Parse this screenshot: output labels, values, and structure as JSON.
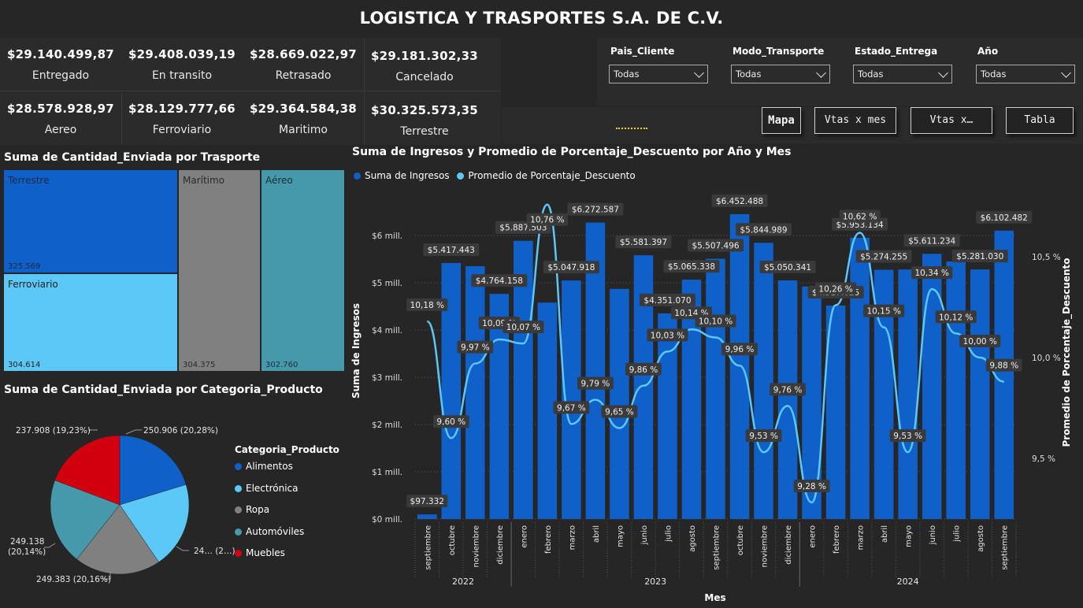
{
  "header": {
    "title": "LOGISTICA Y TRASPORTES S.A. DE C.V."
  },
  "kpis": [
    {
      "value": "$29.140.499,87",
      "label": "Entregado"
    },
    {
      "value": "$29.408.039,19",
      "label": "En transito"
    },
    {
      "value": "$28.669.022,97",
      "label": "Retrasado"
    },
    {
      "value": "$29.181.302,33",
      "label": "Cancelado"
    },
    {
      "value": "$28.578.928,97",
      "label": "Aereo"
    },
    {
      "value": "$28.129.777,66",
      "label": "Ferroviario"
    },
    {
      "value": "$29.364.584,38",
      "label": "Maritimo"
    },
    {
      "value": "$30.325.573,35",
      "label": "Terrestre"
    }
  ],
  "filters": [
    {
      "label": "Pais_Cliente",
      "value": "Todas"
    },
    {
      "label": "Modo_Transporte",
      "value": "Todas"
    },
    {
      "label": "Estado_Entrega",
      "value": "Todas"
    },
    {
      "label": "Año",
      "value": "Todas"
    }
  ],
  "nav": {
    "buttons": [
      "Mapa",
      "Vtas x mes",
      "Vtas x…",
      "Tabla"
    ]
  },
  "treemap": {
    "title": "Suma de Cantidad_Enviada por Trasporte",
    "items": [
      {
        "label": "Terrestre",
        "value": "325.569",
        "color": "#1060c9"
      },
      {
        "label": "Ferroviario",
        "value": "304.614",
        "color": "#5bc8f8"
      },
      {
        "label": "Marítimo",
        "value": "304.375",
        "color": "#808080"
      },
      {
        "label": "Aéreo",
        "value": "302.760",
        "color": "#4599ab"
      }
    ]
  },
  "pie": {
    "title": "Suma de Cantidad_Enviada por Categoria_Producto",
    "legend_title": "Categoria_Producto",
    "slice_labels": [
      "250.906 (20,28%)",
      "24… (2…)",
      "249.383 (20,16%)",
      "249.138",
      "(20,14%)",
      "237.908 (19,23%)"
    ]
  },
  "chart_data": [
    {
      "type": "treemap",
      "title": "Suma de Cantidad_Enviada por Trasporte",
      "categories": [
        "Terrestre",
        "Ferroviario",
        "Marítimo",
        "Aéreo"
      ],
      "values": [
        325569,
        304614,
        304375,
        302760
      ]
    },
    {
      "type": "pie",
      "title": "Suma de Cantidad_Enviada por Categoria_Producto",
      "legend_title": "Categoria_Producto",
      "categories": [
        "Alimentos",
        "Electrónica",
        "Ropa",
        "Automóviles",
        "Muebles"
      ],
      "values": [
        250906,
        249800,
        249383,
        249138,
        237908
      ],
      "colors": [
        "#1060c9",
        "#5bc8f8",
        "#808080",
        "#4599ab",
        "#d2000f"
      ]
    },
    {
      "type": "bar+line",
      "title": "Suma de Ingresos y Promedio de Porcentaje_Descuento por Año y Mes",
      "xlabel": "Mes",
      "ylabel": "Suma de Ingresos",
      "y2label": "Promedio de Porcentaje_Descuento",
      "y_ticks": [
        "$0 mill.",
        "$1 mill.",
        "$2 mill.",
        "$3 mill.",
        "$4 mill.",
        "$5 mill.",
        "$6 mill."
      ],
      "y2_ticks": [
        "9,5 %",
        "10,0 %",
        "10,5 %"
      ],
      "ylim": [
        0,
        6000000
      ],
      "y2lim": [
        9.0,
        11.0
      ],
      "grid": true,
      "legend_position": "top-left",
      "years": [
        {
          "label": "2022",
          "count": 4
        },
        {
          "label": "2023",
          "count": 12
        },
        {
          "label": "2024",
          "count": 9
        }
      ],
      "categories": [
        "septiembre",
        "octubre",
        "noviembre",
        "diciembre",
        "enero",
        "febrero",
        "marzo",
        "abril",
        "mayo",
        "junio",
        "julio",
        "agosto",
        "septiembre",
        "octubre",
        "noviembre",
        "diciembre",
        "enero",
        "febrero",
        "marzo",
        "abril",
        "mayo",
        "junio",
        "julio",
        "agosto",
        "septiembre"
      ],
      "series": [
        {
          "name": "Suma de Ingresos",
          "kind": "bar",
          "color": "#1060c9",
          "values": [
            97332,
            5417443,
            5350000,
            4764158,
            5887503,
            4580000,
            5047918,
            6272587,
            4870000,
            5581397,
            4351070,
            5065338,
            5507496,
            6452488,
            5844989,
            5050341,
            4920000,
            4517025,
            5953134,
            5274255,
            5280000,
            5611234,
            5450000,
            5281030,
            6102482
          ],
          "labels": [
            "$97.332",
            "$5.417.443",
            "",
            "$4.764.158",
            "$5.887.503",
            "",
            "$5.047.918",
            "$6.272.587",
            "",
            "$5.581.397",
            "$4.351.070",
            "$5.065.338",
            "$5.507.496",
            "$6.452.488",
            "$5.844.989",
            "$5.050.341",
            "",
            "$4.517.025",
            "$5.953.134",
            "$5.274.255",
            "",
            "$5.611.234",
            "",
            "$5.281.030",
            "$6.102.482"
          ]
        },
        {
          "name": "Promedio de Porcentaje_Descuento",
          "kind": "line",
          "color": "#5bc8f8",
          "values": [
            10.18,
            9.6,
            9.97,
            10.09,
            10.07,
            10.76,
            9.67,
            9.79,
            9.65,
            9.86,
            10.03,
            10.14,
            10.1,
            9.96,
            9.53,
            9.76,
            9.28,
            10.26,
            10.62,
            10.15,
            9.53,
            10.34,
            10.12,
            10.0,
            9.88
          ],
          "labels": [
            "10,18 %",
            "9,60 %",
            "9,97 %",
            "10,09 %",
            "10,07 %",
            "10,76 %",
            "9,67 %",
            "9,79 %",
            "9,65 %",
            "9,86 %",
            "10,03 %",
            "10,14 %",
            "10,10 %",
            "9,96 %",
            "9,53 %",
            "9,76 %",
            "9,28 %",
            "10,26 %",
            "10,62 %",
            "10,15 %",
            "9,53 %",
            "10,34 %",
            "10,12 %",
            "10,00 %",
            "9,88 %"
          ]
        }
      ]
    }
  ]
}
